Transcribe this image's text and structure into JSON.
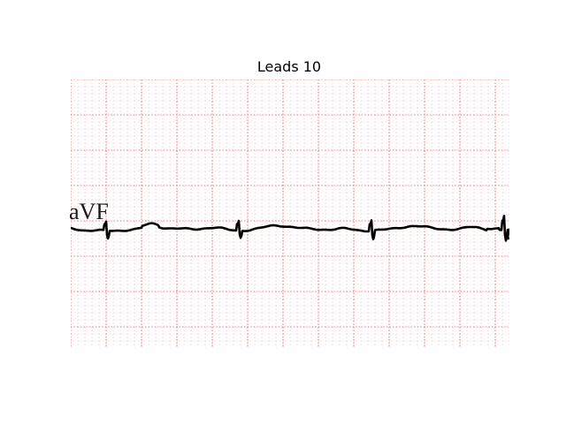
{
  "figure": {
    "title": "Leads 10"
  },
  "ecg": {
    "lead_label": "aVF",
    "grid_color": "#f08080",
    "trace_color": "#000000",
    "background": "#ffffff"
  }
}
